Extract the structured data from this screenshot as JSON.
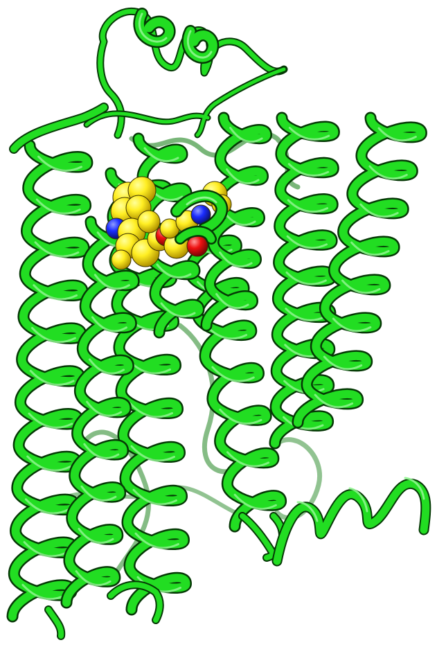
{
  "image": {
    "kind": "protein-cartoon-render",
    "background_color": "#ffffff"
  },
  "colors": {
    "ribbon_main": "#22dd22",
    "ribbon_dark": "#0b7a0b",
    "ribbon_light": "#8ff58f",
    "outline": "#053805",
    "ligand_carbon": "#ffee22",
    "ligand_carbon_shade": "#c8a800",
    "ligand_nitrogen": "#1a2cff",
    "ligand_oxygen": "#ee1111"
  },
  "structure": {
    "helices": [
      "helix-1",
      "helix-2",
      "helix-3",
      "helix-4",
      "helix-5",
      "helix-6",
      "helix-7",
      "helix-8"
    ],
    "ligand": {
      "atoms": [
        "carbon",
        "nitrogen",
        "oxygen"
      ]
    }
  }
}
